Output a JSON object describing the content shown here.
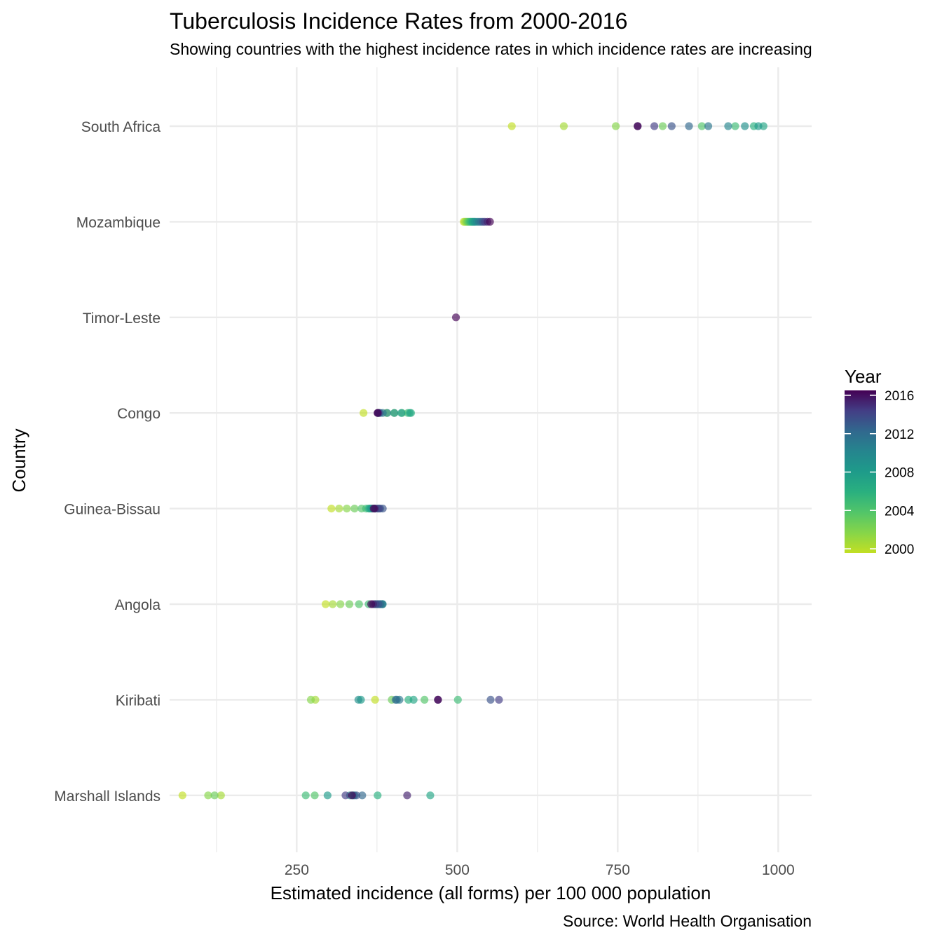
{
  "chart_data": {
    "type": "scatter",
    "title": "Tuberculosis Incidence Rates from 2000-2016",
    "subtitle": "Showing countries with the highest incidence rates in which incidence rates are increasing",
    "xlabel": "Estimated incidence (all forms) per 100 000 population",
    "ylabel": "Country",
    "caption": "Source: World Health Organisation",
    "xlim": [
      52,
      1052
    ],
    "x_ticks": [
      250,
      500,
      750,
      1000
    ],
    "x_tick_labels": [
      "250",
      "500",
      "750",
      "1000"
    ],
    "grid": true,
    "legend": {
      "title": "Year",
      "placement": "right",
      "range": [
        2000,
        2016
      ],
      "ticks": [
        2000,
        2004,
        2008,
        2012,
        2016
      ],
      "tick_labels": [
        "2000",
        "2004",
        "2008",
        "2012",
        "2016"
      ],
      "colors": [
        "#c2df23",
        "#21a685",
        "#2a788e",
        "#423e85",
        "#440154"
      ]
    },
    "categories": [
      "South Africa",
      "Mozambique",
      "Timor-Leste",
      "Congo",
      "Guinea-Bissau",
      "Angola",
      "Kiribati",
      "Marshall Islands"
    ],
    "series": [
      {
        "country": "South Africa",
        "points": [
          {
            "year": 2000,
            "x": 585
          },
          {
            "year": 2001,
            "x": 666
          },
          {
            "year": 2002,
            "x": 747
          },
          {
            "year": 2003,
            "x": 820
          },
          {
            "year": 2004,
            "x": 881
          },
          {
            "year": 2005,
            "x": 933
          },
          {
            "year": 2006,
            "x": 962
          },
          {
            "year": 2007,
            "x": 977
          },
          {
            "year": 2008,
            "x": 969
          },
          {
            "year": 2009,
            "x": 948
          },
          {
            "year": 2010,
            "x": 922
          },
          {
            "year": 2011,
            "x": 891
          },
          {
            "year": 2012,
            "x": 861
          },
          {
            "year": 2013,
            "x": 834
          },
          {
            "year": 2014,
            "x": 807
          },
          {
            "year": 2015,
            "x": 781
          },
          {
            "year": 2016,
            "x": 781
          }
        ]
      },
      {
        "country": "Mozambique",
        "points": [
          {
            "year": 2000,
            "x": 510
          },
          {
            "year": 2001,
            "x": 512
          },
          {
            "year": 2002,
            "x": 514
          },
          {
            "year": 2003,
            "x": 516
          },
          {
            "year": 2004,
            "x": 518
          },
          {
            "year": 2005,
            "x": 520
          },
          {
            "year": 2006,
            "x": 522
          },
          {
            "year": 2007,
            "x": 524
          },
          {
            "year": 2008,
            "x": 526
          },
          {
            "year": 2009,
            "x": 528
          },
          {
            "year": 2010,
            "x": 531
          },
          {
            "year": 2011,
            "x": 534
          },
          {
            "year": 2012,
            "x": 537
          },
          {
            "year": 2013,
            "x": 540
          },
          {
            "year": 2014,
            "x": 543
          },
          {
            "year": 2015,
            "x": 547
          },
          {
            "year": 2016,
            "x": 551
          }
        ]
      },
      {
        "country": "Timor-Leste",
        "points": [
          {
            "year": 2016,
            "x": 498
          }
        ]
      },
      {
        "country": "Congo",
        "points": [
          {
            "year": 2000,
            "x": 354
          },
          {
            "year": 2001,
            "x": 378
          },
          {
            "year": 2002,
            "x": 390
          },
          {
            "year": 2003,
            "x": 402
          },
          {
            "year": 2004,
            "x": 414
          },
          {
            "year": 2005,
            "x": 423
          },
          {
            "year": 2006,
            "x": 428
          },
          {
            "year": 2007,
            "x": 426
          },
          {
            "year": 2008,
            "x": 413
          },
          {
            "year": 2009,
            "x": 402
          },
          {
            "year": 2010,
            "x": 391
          },
          {
            "year": 2011,
            "x": 384
          },
          {
            "year": 2012,
            "x": 380
          },
          {
            "year": 2013,
            "x": 378
          },
          {
            "year": 2014,
            "x": 377
          },
          {
            "year": 2015,
            "x": 376
          },
          {
            "year": 2016,
            "x": 376
          }
        ]
      },
      {
        "country": "Guinea-Bissau",
        "points": [
          {
            "year": 2000,
            "x": 304
          },
          {
            "year": 2001,
            "x": 316
          },
          {
            "year": 2002,
            "x": 328
          },
          {
            "year": 2003,
            "x": 340
          },
          {
            "year": 2004,
            "x": 351
          },
          {
            "year": 2005,
            "x": 358
          },
          {
            "year": 2006,
            "x": 362
          },
          {
            "year": 2007,
            "x": 364
          },
          {
            "year": 2008,
            "x": 366
          },
          {
            "year": 2009,
            "x": 368
          },
          {
            "year": 2010,
            "x": 372
          },
          {
            "year": 2011,
            "x": 376
          },
          {
            "year": 2012,
            "x": 380
          },
          {
            "year": 2013,
            "x": 384
          },
          {
            "year": 2014,
            "x": 378
          },
          {
            "year": 2015,
            "x": 372
          },
          {
            "year": 2016,
            "x": 370
          }
        ]
      },
      {
        "country": "Angola",
        "points": [
          {
            "year": 2000,
            "x": 295
          },
          {
            "year": 2001,
            "x": 306
          },
          {
            "year": 2002,
            "x": 318
          },
          {
            "year": 2003,
            "x": 332
          },
          {
            "year": 2004,
            "x": 347
          },
          {
            "year": 2005,
            "x": 362
          },
          {
            "year": 2006,
            "x": 372
          },
          {
            "year": 2007,
            "x": 376
          },
          {
            "year": 2008,
            "x": 380
          },
          {
            "year": 2009,
            "x": 383
          },
          {
            "year": 2010,
            "x": 384
          },
          {
            "year": 2011,
            "x": 383
          },
          {
            "year": 2012,
            "x": 380
          },
          {
            "year": 2013,
            "x": 377
          },
          {
            "year": 2014,
            "x": 373
          },
          {
            "year": 2015,
            "x": 369
          },
          {
            "year": 2016,
            "x": 366
          }
        ]
      },
      {
        "country": "Kiribati",
        "points": [
          {
            "year": 2000,
            "x": 372
          },
          {
            "year": 2001,
            "x": 279
          },
          {
            "year": 2002,
            "x": 272
          },
          {
            "year": 2003,
            "x": 398
          },
          {
            "year": 2004,
            "x": 449
          },
          {
            "year": 2005,
            "x": 501
          },
          {
            "year": 2006,
            "x": 424
          },
          {
            "year": 2007,
            "x": 432
          },
          {
            "year": 2008,
            "x": 350
          },
          {
            "year": 2009,
            "x": 346
          },
          {
            "year": 2010,
            "x": 406
          },
          {
            "year": 2011,
            "x": 410
          },
          {
            "year": 2012,
            "x": 404
          },
          {
            "year": 2013,
            "x": 552
          },
          {
            "year": 2014,
            "x": 565
          },
          {
            "year": 2015,
            "x": 470
          },
          {
            "year": 2016,
            "x": 470
          }
        ]
      },
      {
        "country": "Marshall Islands",
        "points": [
          {
            "year": 2000,
            "x": 72
          },
          {
            "year": 2001,
            "x": 132
          },
          {
            "year": 2002,
            "x": 112
          },
          {
            "year": 2003,
            "x": 122
          },
          {
            "year": 2004,
            "x": 278
          },
          {
            "year": 2005,
            "x": 264
          },
          {
            "year": 2006,
            "x": 376
          },
          {
            "year": 2007,
            "x": 458
          },
          {
            "year": 2008,
            "x": 298
          },
          {
            "year": 2009,
            "x": 333
          },
          {
            "year": 2010,
            "x": 338
          },
          {
            "year": 2011,
            "x": 340
          },
          {
            "year": 2012,
            "x": 352
          },
          {
            "year": 2013,
            "x": 343
          },
          {
            "year": 2014,
            "x": 326
          },
          {
            "year": 2015,
            "x": 422
          },
          {
            "year": 2016,
            "x": 336
          }
        ]
      }
    ]
  }
}
